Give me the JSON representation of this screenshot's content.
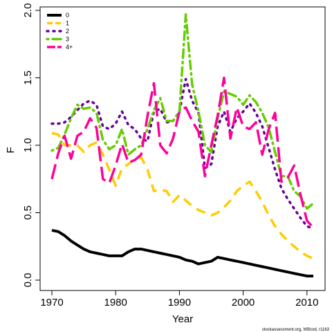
{
  "chart_data": {
    "type": "line",
    "title": "",
    "xlabel": "Year",
    "ylabel": "F",
    "xlim": [
      1970,
      2011
    ],
    "ylim": [
      0,
      2
    ],
    "x_ticks": [
      1970,
      1980,
      1990,
      2000,
      2010
    ],
    "y_ticks": [
      0.0,
      0.5,
      1.0,
      1.5,
      2.0
    ],
    "y_tick_labels": [
      "0.0",
      "0.5",
      "1.0",
      "1.5",
      "2.0"
    ],
    "grid": false,
    "legend_position": "top-left",
    "x": [
      1970,
      1971,
      1972,
      1973,
      1974,
      1975,
      1976,
      1977,
      1978,
      1979,
      1980,
      1981,
      1982,
      1983,
      1984,
      1985,
      1986,
      1987,
      1988,
      1989,
      1990,
      1991,
      1992,
      1993,
      1994,
      1995,
      1996,
      1997,
      1998,
      1999,
      2000,
      2001,
      2002,
      2003,
      2004,
      2005,
      2006,
      2007,
      2008,
      2009,
      2010,
      2011
    ],
    "series": [
      {
        "name": "0",
        "color": "#000000",
        "dash": "solid",
        "width": 4,
        "values": [
          0.37,
          0.36,
          0.33,
          0.29,
          0.26,
          0.23,
          0.21,
          0.2,
          0.19,
          0.18,
          0.18,
          0.18,
          0.21,
          0.23,
          0.23,
          0.22,
          0.21,
          0.2,
          0.19,
          0.18,
          0.17,
          0.15,
          0.14,
          0.12,
          0.13,
          0.14,
          0.17,
          0.16,
          0.15,
          0.14,
          0.13,
          0.12,
          0.11,
          0.1,
          0.09,
          0.08,
          0.07,
          0.06,
          0.05,
          0.04,
          0.03,
          0.03
        ]
      },
      {
        "name": "1",
        "color": "#FFCC00",
        "dash": "dash",
        "width": 3.5,
        "values": [
          1.09,
          1.08,
          1.0,
          1.0,
          1.0,
          0.95,
          1.0,
          1.02,
          0.93,
          0.82,
          0.7,
          0.83,
          0.86,
          0.9,
          0.91,
          0.82,
          0.66,
          0.67,
          0.66,
          0.58,
          0.63,
          0.59,
          0.55,
          0.52,
          0.5,
          0.48,
          0.5,
          0.54,
          0.59,
          0.66,
          0.7,
          0.73,
          0.66,
          0.58,
          0.48,
          0.4,
          0.34,
          0.29,
          0.25,
          0.21,
          0.18,
          0.16
        ]
      },
      {
        "name": "2",
        "color": "#660099",
        "dash": "dot",
        "width": 3.5,
        "values": [
          1.16,
          1.16,
          1.17,
          1.21,
          1.26,
          1.31,
          1.33,
          1.3,
          1.14,
          1.12,
          1.16,
          1.25,
          1.15,
          1.12,
          1.05,
          1.03,
          1.25,
          1.27,
          1.17,
          1.18,
          1.25,
          1.49,
          1.33,
          1.24,
          0.83,
          0.86,
          1.14,
          1.25,
          1.1,
          1.2,
          1.25,
          1.31,
          1.24,
          1.14,
          0.98,
          0.82,
          0.68,
          0.6,
          0.53,
          0.46,
          0.4,
          0.38
        ]
      },
      {
        "name": "3",
        "color": "#66CC00",
        "dash": "dashdot",
        "width": 3.5,
        "values": [
          0.96,
          0.98,
          1.08,
          1.2,
          1.3,
          1.27,
          1.28,
          1.24,
          1.04,
          0.97,
          1.0,
          1.12,
          0.93,
          0.97,
          1.0,
          1.12,
          1.26,
          1.35,
          1.18,
          1.18,
          1.25,
          1.97,
          1.45,
          1.25,
          1.0,
          0.95,
          1.2,
          1.4,
          1.38,
          1.36,
          1.3,
          1.37,
          1.32,
          1.24,
          1.13,
          0.95,
          0.77,
          0.77,
          0.66,
          0.62,
          0.53,
          0.57
        ]
      },
      {
        "name": "4+",
        "color": "#FF0099",
        "dash": "longdash",
        "width": 3.5,
        "values": [
          0.75,
          0.94,
          1.07,
          0.9,
          1.07,
          1.1,
          1.2,
          1.13,
          0.75,
          0.72,
          0.85,
          1.01,
          0.87,
          0.89,
          0.93,
          1.22,
          1.46,
          1.0,
          0.94,
          1.05,
          1.25,
          1.28,
          1.18,
          1.1,
          0.77,
          1.0,
          1.22,
          1.5,
          1.05,
          1.28,
          1.14,
          1.12,
          1.17,
          0.93,
          1.12,
          1.24,
          0.73,
          0.76,
          0.85,
          0.63,
          0.44,
          0.39
        ]
      }
    ],
    "footnote": "stockassessment.org, WBcod, r1163"
  }
}
